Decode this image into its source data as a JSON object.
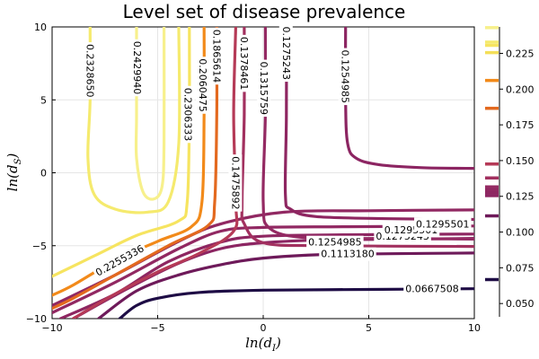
{
  "chart_data": {
    "type": "contour",
    "title": "Level set of disease prevalence",
    "xlabel": "ln(d_I)",
    "ylabel": "ln(d_S)",
    "xlim": [
      -10,
      10
    ],
    "ylim": [
      -10,
      10
    ],
    "xticks": [
      -10,
      -5,
      0,
      5,
      10
    ],
    "yticks": [
      -10,
      -5,
      0,
      5,
      10
    ],
    "grid": true,
    "colorbar": {
      "range": [
        0.0407,
        0.2435
      ],
      "ticks": [
        0.05,
        0.075,
        0.1,
        0.125,
        0.15,
        0.175,
        0.2,
        0.225
      ],
      "tick_labels": [
        "0.050",
        "0.075",
        "0.100",
        "0.125",
        "0.150",
        "0.175",
        "0.200",
        "0.225"
      ]
    },
    "levels": [
      {
        "value": 0.0667508,
        "label": "0.0667508",
        "color": "#1e0c45",
        "path": [
          [
            -6.8,
            -10
          ],
          [
            -6,
            -9.1
          ],
          [
            -5,
            -8.6
          ],
          [
            -3,
            -8.2
          ],
          [
            0,
            -8.05
          ],
          [
            5,
            -8.0
          ],
          [
            10,
            -7.95
          ]
        ],
        "label_pos": [
          8.0,
          -7.95
        ],
        "label_rot": 0
      },
      {
        "value": 0.111318,
        "label": "0.1113180",
        "color": "#6e1a5a",
        "path": [
          [
            -7.8,
            -10
          ],
          [
            -6,
            -8.1
          ],
          [
            -4,
            -7.0
          ],
          [
            -2,
            -6.3
          ],
          [
            0,
            -5.85
          ],
          [
            3,
            -5.6
          ],
          [
            6,
            -5.55
          ],
          [
            10,
            -5.5
          ]
        ],
        "label_pos": [
          4.0,
          -5.55
        ],
        "label_rot": 0
      },
      {
        "value": 0.1254985,
        "label": "0.1254985",
        "color": "#8c2562",
        "path": [
          [
            -9.0,
            -10
          ],
          [
            -6.5,
            -8
          ],
          [
            -4,
            -6.2
          ],
          [
            -2,
            -5.2
          ],
          [
            0,
            -4.8
          ],
          [
            3,
            -4.6
          ],
          [
            7,
            -4.55
          ],
          [
            10,
            -4.5
          ]
        ],
        "label_pos": [
          3.4,
          -4.75
        ],
        "label_rot": 0
      },
      {
        "value": 0.1275243,
        "label": "0.1275243",
        "color": "#8e2661",
        "path": [
          [
            -9.6,
            -10
          ],
          [
            -7,
            -8.3
          ],
          [
            -4.5,
            -6.1
          ],
          [
            -2,
            -4.75
          ],
          [
            0,
            -4.35
          ],
          [
            4,
            -4.25
          ],
          [
            10,
            -4.2
          ]
        ],
        "label_pos": [
          6.6,
          -4.35
        ],
        "label_rot": 0
      },
      {
        "value": 0.1295501,
        "label": "0.1295501",
        "color": "#912862",
        "path": [
          [
            -10,
            -9.6
          ],
          [
            -7,
            -7.5
          ],
          [
            -4,
            -5.2
          ],
          [
            -2,
            -4.0
          ],
          [
            0,
            -3.75
          ],
          [
            4,
            -3.7
          ],
          [
            10,
            -3.65
          ]
        ],
        "label_pos": [
          7.0,
          -3.9
        ],
        "label_rot": 0
      },
      {
        "value": 0.1295501,
        "label": "0.1295501",
        "color": "#912862",
        "path": [
          [
            -10,
            -9.1
          ],
          [
            -7,
            -7.0
          ],
          [
            -4,
            -4.7
          ],
          [
            -2,
            -3.5
          ],
          [
            1,
            -2.7
          ],
          [
            5,
            -2.6
          ],
          [
            10,
            -2.55
          ]
        ],
        "label_pos": [
          8.5,
          -3.5
        ],
        "label_rot": 0
      },
      {
        "value": 0.1254985,
        "label": "0.1254985",
        "color": "#8c2562",
        "path": [
          [
            3.9,
            10
          ],
          [
            3.9,
            5
          ],
          [
            4.0,
            2
          ],
          [
            4.4,
            1
          ],
          [
            5.5,
            0.55
          ],
          [
            7.5,
            0.35
          ],
          [
            10,
            0.3
          ]
        ],
        "label_pos": [
          3.9,
          6.6
        ],
        "label_rot": 90
      },
      {
        "value": 0.1275243,
        "label": "0.1275243",
        "color": "#8e2661",
        "path": [
          [
            1.1,
            10
          ],
          [
            1.1,
            4
          ],
          [
            1.05,
            -1.5
          ],
          [
            1.3,
            -2.5
          ],
          [
            2.5,
            -3.0
          ],
          [
            6,
            -3.15
          ],
          [
            10,
            -3.2
          ]
        ],
        "label_pos": [
          1.1,
          8.2
        ],
        "label_rot": 90
      },
      {
        "value": 0.1315759,
        "label": "0.1315759",
        "color": "#942a63",
        "path": [
          [
            0.1,
            10
          ],
          [
            0.1,
            4
          ],
          [
            0.0,
            -2
          ],
          [
            0.3,
            -3.8
          ],
          [
            2,
            -4.45
          ],
          [
            6,
            -4.5
          ],
          [
            10,
            -4.55
          ]
        ],
        "label_pos": [
          0.05,
          5.8
        ],
        "label_rot": 90
      },
      {
        "value": 0.1378461,
        "label": "0.1378461",
        "color": "#a2305f",
        "path": [
          [
            -0.9,
            10
          ],
          [
            -0.9,
            4
          ],
          [
            -1.0,
            -2
          ],
          [
            -0.9,
            -3.5
          ],
          [
            0,
            -4.8
          ],
          [
            3,
            -5.0
          ],
          [
            10,
            -5.05
          ]
        ],
        "label_pos": [
          -0.9,
          7.5
        ],
        "label_rot": 90
      },
      {
        "value": 0.1475892,
        "label": "0.1475892",
        "color": "#b53a57",
        "path": [
          [
            -1.3,
            10
          ],
          [
            -1.4,
            4
          ],
          [
            -1.3,
            -2
          ],
          [
            -1.4,
            -4
          ],
          [
            -3,
            -5.5
          ],
          [
            -5,
            -6.8
          ],
          [
            -7,
            -8.3
          ],
          [
            -9,
            -10
          ]
        ],
        "label_pos": [
          -1.3,
          -0.7
        ],
        "label_rot": 90
      },
      {
        "value": 0.1865614,
        "label": "0.1865614",
        "color": "#e3691f",
        "path": [
          [
            -2.2,
            10
          ],
          [
            -2.2,
            4
          ],
          [
            -2.3,
            -2
          ],
          [
            -2.6,
            -3.6
          ],
          [
            -4.5,
            -5.0
          ],
          [
            -7,
            -7.0
          ],
          [
            -9,
            -8.6
          ],
          [
            -10,
            -9.3
          ]
        ],
        "label_pos": [
          -2.2,
          8.0
        ],
        "label_rot": 90
      },
      {
        "value": 0.2060475,
        "label": "0.2060475",
        "color": "#f28a1a",
        "path": [
          [
            -2.8,
            10
          ],
          [
            -2.8,
            4
          ],
          [
            -2.9,
            -2
          ],
          [
            -3.4,
            -3.7
          ],
          [
            -5,
            -4.7
          ],
          [
            -7,
            -6.0
          ],
          [
            -9,
            -7.7
          ],
          [
            -10,
            -8.4
          ]
        ],
        "label_pos": [
          -2.85,
          6.0
        ],
        "label_rot": 90
      },
      {
        "value": 0.2306333,
        "label": "0.2306333",
        "color": "#f6e460",
        "path": [
          [
            -3.5,
            10
          ],
          [
            -3.5,
            4
          ],
          [
            -3.6,
            -2
          ],
          [
            -4,
            -3.3
          ],
          [
            -6,
            -4.3
          ],
          [
            -8,
            -5.7
          ],
          [
            -10,
            -7.1
          ]
        ],
        "label_pos": [
          -3.55,
          4.0
        ],
        "label_rot": 90
      },
      {
        "value": 0.232865,
        "label": "0.2328650",
        "color": "#f5ea6e",
        "path": [
          [
            -8.2,
            10
          ],
          [
            -8.2,
            5
          ],
          [
            -8.3,
            1
          ],
          [
            -8.0,
            -1.5
          ],
          [
            -7.0,
            -2.5
          ],
          [
            -5.5,
            -2.7
          ],
          [
            -4.5,
            -2.0
          ],
          [
            -4.0,
            2
          ],
          [
            -4.0,
            10
          ]
        ],
        "label_pos": [
          -8.2,
          7.0
        ],
        "label_rot": 90
      },
      {
        "value": 0.242994,
        "label": "0.2429940",
        "color": "#f7f08c",
        "path": [
          [
            -6.0,
            10
          ],
          [
            -6.0,
            4
          ],
          [
            -6.0,
            1
          ],
          [
            -5.7,
            -1.3
          ],
          [
            -5.2,
            -1.8
          ],
          [
            -4.8,
            -1.0
          ],
          [
            -4.7,
            2
          ],
          [
            -4.7,
            10
          ]
        ],
        "label_pos": [
          -5.95,
          7.2
        ],
        "label_rot": 90
      },
      {
        "value": 0.2255336,
        "label": "0.2255336",
        "color": "#f4df58",
        "label_pos": [
          -6.8,
          -6.0
        ],
        "label_rot": -29
      }
    ]
  }
}
